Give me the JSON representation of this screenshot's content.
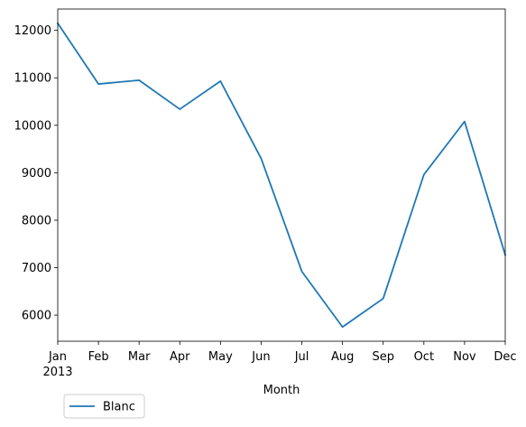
{
  "chart_data": {
    "type": "line",
    "title": "",
    "xlabel": "Month",
    "ylabel": "",
    "x": [
      "Jan",
      "Feb",
      "Mar",
      "Apr",
      "May",
      "Jun",
      "Jul",
      "Aug",
      "Sep",
      "Oct",
      "Nov",
      "Dec"
    ],
    "x_year_label": "2013",
    "y_ticks": [
      6000,
      7000,
      8000,
      9000,
      10000,
      11000,
      12000
    ],
    "ylim": [
      5450,
      12450
    ],
    "grid": false,
    "legend_position": "bottom-left",
    "series": [
      {
        "name": "Blanc",
        "color": "#1f77b4",
        "values": [
          12150,
          10870,
          10950,
          10340,
          10930,
          9300,
          6920,
          5750,
          6350,
          8960,
          10080,
          7270
        ]
      }
    ]
  }
}
